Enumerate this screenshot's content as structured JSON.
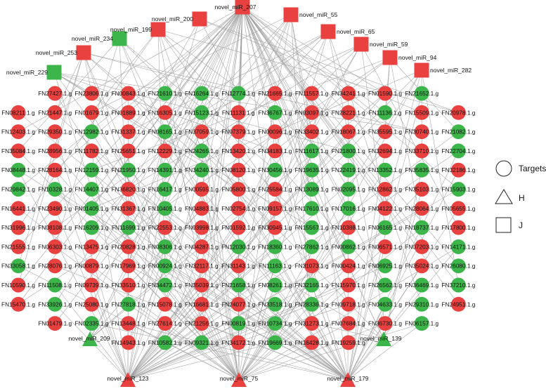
{
  "colors": {
    "red": "#e8413f",
    "green": "#3cb54a",
    "edge": "#9a9a9a"
  },
  "mirnas": {
    "top_squares": [
      {
        "label": "novel_miR_229",
        "color": "green"
      },
      {
        "label": "novel_miR_253",
        "color": "red"
      },
      {
        "label": "novel_miR_234",
        "color": "green"
      },
      {
        "label": "novel_miR_199",
        "color": "red"
      },
      {
        "label": "novel_miR_200",
        "color": "red"
      },
      {
        "label": "novel_miR_207",
        "color": "red"
      },
      {
        "label": "novel_miR_55",
        "color": "red"
      },
      {
        "label": "novel_miR_65",
        "color": "red"
      },
      {
        "label": "novel_miR_59",
        "color": "red"
      },
      {
        "label": "novel_miR_94",
        "color": "red"
      },
      {
        "label": "novel_miR_282",
        "color": "red"
      }
    ],
    "triangles": [
      {
        "label": "novel_miR_209",
        "color": "green"
      },
      {
        "label": "novel_miR_139",
        "color": "green"
      },
      {
        "label": "novel_miR_123",
        "color": "red"
      },
      {
        "label": "novel_miR_75",
        "color": "red"
      },
      {
        "label": "novel_miR_179",
        "color": "red"
      }
    ]
  },
  "target_rows": [
    {
      "start": 1,
      "nodes": [
        [
          "FN27427.1.g",
          "r"
        ],
        [
          "FN23806.1.g",
          "r"
        ],
        [
          "FN00843.1.g",
          "r"
        ],
        [
          "FN21610.1.g",
          "g"
        ],
        [
          "FN16264.1.g",
          "g"
        ],
        [
          "FN12774.1.g",
          "g"
        ],
        [
          "FN21665.1.g",
          "r"
        ],
        [
          "FN11557.1.g",
          "r"
        ],
        [
          "FN34241.1.g",
          "r"
        ],
        [
          "FN01590.1.g",
          "r"
        ],
        [
          "FN21652.1.g",
          "g"
        ]
      ]
    },
    {
      "start": 0,
      "nodes": [
        [
          "FN08211.1.g",
          "r"
        ],
        [
          "FN21447.1.g",
          "r"
        ],
        [
          "FN01679.1.g",
          "r"
        ],
        [
          "FN01889.1.g",
          "r"
        ],
        [
          "FN16305.1.g",
          "r"
        ],
        [
          "FN15123.1.g",
          "g"
        ],
        [
          "FN11131.1.g",
          "r"
        ],
        [
          "FN36767.1.g",
          "g"
        ],
        [
          "FN03097.1.g",
          "r"
        ],
        [
          "FN28221.1.g",
          "r"
        ],
        [
          "FN11136.1.g",
          "g"
        ],
        [
          "FN15509.1.g",
          "r"
        ],
        [
          "FN20978.1.g",
          "r"
        ]
      ]
    },
    {
      "start": 0,
      "nodes": [
        [
          "FN12403.1.g",
          "r"
        ],
        [
          "FN29350.1.g",
          "r"
        ],
        [
          "FN12982.1.g",
          "g"
        ],
        [
          "FN31337.1.g",
          "r"
        ],
        [
          "FN08165.1.g",
          "g"
        ],
        [
          "FN37059.1.g",
          "r"
        ],
        [
          "FN07379.1.g",
          "r"
        ],
        [
          "FN00096.1.g",
          "r"
        ],
        [
          "FN33402.1.g",
          "r"
        ],
        [
          "FN18067.1.g",
          "r"
        ],
        [
          "FN35595.1.g",
          "r"
        ],
        [
          "FN30740.1.g",
          "r"
        ],
        [
          "FN21082.1.g",
          "g"
        ]
      ]
    },
    {
      "start": 0,
      "nodes": [
        [
          "FN35084.1.g",
          "r"
        ],
        [
          "FN28956.1.g",
          "r"
        ],
        [
          "FN11782.1.g",
          "r"
        ],
        [
          "FN25651.1.g",
          "r"
        ],
        [
          "FN12229.1.g",
          "r"
        ],
        [
          "FN24265.1.g",
          "g"
        ],
        [
          "FN13420.1.g",
          "r"
        ],
        [
          "FN34183.1.g",
          "r"
        ],
        [
          "FN11617.1.g",
          "g"
        ],
        [
          "FN21800.1.g",
          "g"
        ],
        [
          "FN32694.1.g",
          "r"
        ],
        [
          "FN33710.1.g",
          "r"
        ],
        [
          "FN22704.1.g",
          "g"
        ]
      ]
    },
    {
      "start": 0,
      "nodes": [
        [
          "FN08448.1.g",
          "g"
        ],
        [
          "FN28164.1.g",
          "r"
        ],
        [
          "FN12159.1.g",
          "g"
        ],
        [
          "FN21950.1.g",
          "g"
        ],
        [
          "FN14391.1.g",
          "g"
        ],
        [
          "FN34240.1.g",
          "g"
        ],
        [
          "FN08120.1.g",
          "r"
        ],
        [
          "FN30456.1.g",
          "g"
        ],
        [
          "FN19635.1.g",
          "g"
        ],
        [
          "FN22419.1.g",
          "g"
        ],
        [
          "FN13352.1.g",
          "g"
        ],
        [
          "FN35835.1.g",
          "g"
        ],
        [
          "FN32186.1.g",
          "r"
        ]
      ]
    },
    {
      "start": 0,
      "nodes": [
        [
          "FN29842.1.g",
          "g"
        ],
        [
          "FN10328.1.g",
          "g"
        ],
        [
          "FN14407.1.g",
          "g"
        ],
        [
          "FN36820.1.g",
          "r"
        ],
        [
          "FN16417.1.g",
          "g"
        ],
        [
          "FN00595.1.g",
          "r"
        ],
        [
          "FN05800.1.g",
          "r"
        ],
        [
          "FN25584.1.g",
          "r"
        ],
        [
          "FN13089.1.g",
          "g"
        ],
        [
          "FN02095.1.g",
          "g"
        ],
        [
          "FN12862.1.g",
          "r"
        ],
        [
          "FN35103.1.g",
          "r"
        ],
        [
          "FN15903.1.g",
          "g"
        ]
      ]
    },
    {
      "start": 0,
      "nodes": [
        [
          "FN16441.1.g",
          "r"
        ],
        [
          "FN23490.1.g",
          "r"
        ],
        [
          "FN01405.1.g",
          "g"
        ],
        [
          "FN31367.1.g",
          "r"
        ],
        [
          "FN10405.1.g",
          "g"
        ],
        [
          "FN04883.1.g",
          "r"
        ],
        [
          "FN02754.1.g",
          "r"
        ],
        [
          "FN09157.1.g",
          "r"
        ],
        [
          "FN17610.1.g",
          "g"
        ],
        [
          "FN17016.1.g",
          "g"
        ],
        [
          "FN04122.1.g",
          "r"
        ],
        [
          "FN28064.1.g",
          "r"
        ],
        [
          "FN05655.1.g",
          "r"
        ]
      ]
    },
    {
      "start": 0,
      "nodes": [
        [
          "FN31996.1.g",
          "r"
        ],
        [
          "FN08108.1.g",
          "r"
        ],
        [
          "FN16209.1.g",
          "g"
        ],
        [
          "FN11699.1.g",
          "g"
        ],
        [
          "FN22553.1.g",
          "r"
        ],
        [
          "FN03998.1.g",
          "r"
        ],
        [
          "FN01592.1.g",
          "r"
        ],
        [
          "FN30945.1.g",
          "r"
        ],
        [
          "FN15567.1.g",
          "g"
        ],
        [
          "FN10388.1.g",
          "r"
        ],
        [
          "FN06165.1.g",
          "g"
        ],
        [
          "FN18737.1.g",
          "g"
        ],
        [
          "FN17800.1.g",
          "r"
        ]
      ]
    },
    {
      "start": 0,
      "nodes": [
        [
          "FN21555.1.g",
          "r"
        ],
        [
          "FN06303.1.g",
          "r"
        ],
        [
          "FN13475.1.g",
          "r"
        ],
        [
          "FN20828.1.g",
          "r"
        ],
        [
          "FN08306.1.g",
          "g"
        ],
        [
          "FN04287.1.g",
          "r"
        ],
        [
          "FN12030.1.g",
          "g"
        ],
        [
          "FN18360.1.g",
          "g"
        ],
        [
          "FN27862.1.g",
          "g"
        ],
        [
          "FN00862.1.g",
          "g"
        ],
        [
          "FN06571.1.g",
          "r"
        ],
        [
          "FN07203.1.g",
          "r"
        ],
        [
          "FN14171.1.g",
          "g"
        ]
      ]
    },
    {
      "start": 0,
      "nodes": [
        [
          "FN33058.1.g",
          "g"
        ],
        [
          "FN28076.1.g",
          "r"
        ],
        [
          "FN00879.1.g",
          "r"
        ],
        [
          "FN17969.1.g",
          "r"
        ],
        [
          "FN00924.1.g",
          "g"
        ],
        [
          "FN32117.1.g",
          "r"
        ],
        [
          "FN31143.1.g",
          "r"
        ],
        [
          "FN11163.1.g",
          "g"
        ],
        [
          "FN31073.1.g",
          "r"
        ],
        [
          "FN00424.1.g",
          "r"
        ],
        [
          "FN06925.1.g",
          "g"
        ],
        [
          "FN35024.1.g",
          "r"
        ],
        [
          "FN26080.1.g",
          "g"
        ]
      ]
    },
    {
      "start": 0,
      "nodes": [
        [
          "FN10590.1.g",
          "r"
        ],
        [
          "FN11508.1.g",
          "g"
        ],
        [
          "FN09739.1.g",
          "r"
        ],
        [
          "FN33510.1.g",
          "r"
        ],
        [
          "FN34472.1.g",
          "g"
        ],
        [
          "FN35039.1.g",
          "r"
        ],
        [
          "FN21658.1.g",
          "g"
        ],
        [
          "FN08261.1.g",
          "g"
        ],
        [
          "FN32165.1.g",
          "g"
        ],
        [
          "FN15970.1.g",
          "r"
        ],
        [
          "FN26562.1.g",
          "g"
        ],
        [
          "FN36469.1.g",
          "g"
        ],
        [
          "FN37210.1.g",
          "g"
        ]
      ]
    },
    {
      "start": 0,
      "nodes": [
        [
          "FN15470.1.g",
          "r"
        ],
        [
          "FN33926.1.g",
          "g"
        ],
        [
          "FN25080.1.g",
          "r"
        ],
        [
          "FN27818.1.g",
          "g"
        ],
        [
          "FN15078.1.g",
          "r"
        ],
        [
          "FN16681.1.g",
          "r"
        ],
        [
          "FN24077.1.g",
          "r"
        ],
        [
          "FN33518.1.g",
          "g"
        ],
        [
          "FN28336.1.g",
          "g"
        ],
        [
          "FN09718.1.g",
          "r"
        ],
        [
          "FN04633.1.g",
          "g"
        ],
        [
          "FN29310.1.g",
          "g"
        ],
        [
          "FN24951.1.g",
          "r"
        ]
      ]
    },
    {
      "start": 1,
      "nodes": [
        [
          "FN01479.1.g",
          "r"
        ],
        [
          "FN02335.1.g",
          "g"
        ],
        [
          "FN13448.1.g",
          "r"
        ],
        [
          "FN27614.1.g",
          "r"
        ],
        [
          "FN21256.1.g",
          "r"
        ],
        [
          "FN00819.1.g",
          "g"
        ],
        [
          "FN10734.1.g",
          "g"
        ],
        [
          "FN31273.1.g",
          "r"
        ],
        [
          "FN07684.1.g",
          "r"
        ],
        [
          "FN36730.1.g",
          "r"
        ],
        [
          "FN06157.1.g",
          "g"
        ]
      ]
    },
    {
      "start": 3,
      "nodes": [
        [
          "FN14943.1.g",
          "r"
        ],
        [
          "FN10582.1.g",
          "g"
        ],
        [
          "FN09321.1.g",
          "g"
        ],
        [
          "FN34172.1.g",
          "r"
        ],
        [
          "FN19669.1.g",
          "g"
        ],
        [
          "FN16428.1.g",
          "r"
        ],
        [
          "FN19259.1.g",
          "r"
        ]
      ]
    }
  ],
  "legend": [
    {
      "shape": "circle",
      "label": "Targets"
    },
    {
      "shape": "triangle",
      "label": "H"
    },
    {
      "shape": "square",
      "label": "J"
    }
  ]
}
